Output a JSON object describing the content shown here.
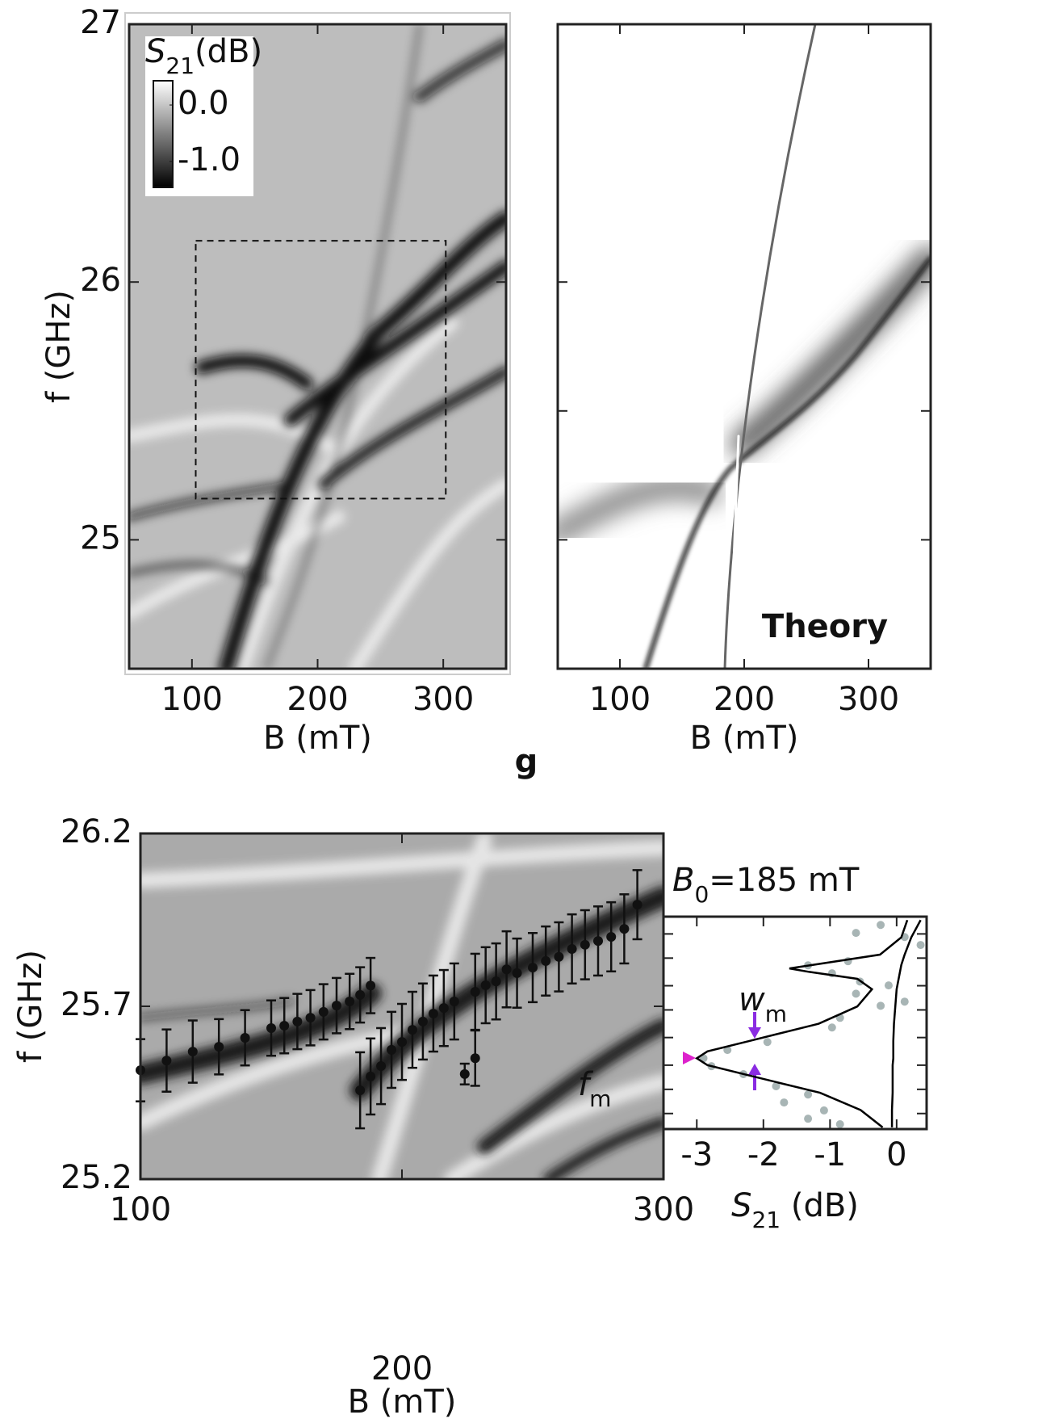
{
  "chart_data": [
    {
      "type": "heatmap",
      "xlim": [
        50,
        350
      ],
      "ylim": [
        24.5,
        27
      ],
      "xticks": [
        100,
        200,
        300
      ],
      "yticks": [
        25,
        26,
        27
      ],
      "xlabel": "B (mT)",
      "ylabel": "f (GHz)",
      "colorbar": {
        "title": {
          "symbol": "S",
          "subscript": "21",
          "unit": "(dB)"
        },
        "lim": [
          -1.46,
          0.43
        ],
        "ticks": [
          {
            "value": 0,
            "label": "0.0"
          },
          {
            "value": -1,
            "label": "-1.0"
          }
        ]
      },
      "highlight_box": {
        "xlim": [
          103,
          302
        ],
        "ylim": [
          25.16,
          26.16
        ]
      }
    },
    {
      "type": "heatmap",
      "xlim": [
        50,
        350
      ],
      "ylim": [
        24.5,
        27
      ],
      "xticks": [
        100,
        200,
        300
      ],
      "ytick_marks": [
        25,
        25.5,
        26
      ],
      "xlabel": "B (mT)",
      "annotation": "Theory"
    },
    {
      "type": "scatter",
      "xlim": [
        100,
        300
      ],
      "ylim": [
        25.2,
        26.2
      ],
      "xticks": [
        100,
        200,
        300
      ],
      "yticks": [
        25.2,
        25.7,
        26.2
      ],
      "xlabel": "B (mT)",
      "ylabel": "f (GHz)",
      "series": [
        {
          "color": "#111111",
          "x": [
            100,
            110,
            120,
            130,
            140,
            150,
            155,
            160,
            165,
            170,
            175,
            180,
            184,
            188,
            184,
            188,
            192,
            196,
            200,
            204,
            208,
            212,
            216,
            220,
            224,
            228,
            228,
            232,
            236,
            240,
            244,
            250,
            255,
            260,
            265,
            270,
            275,
            280,
            285,
            290
          ],
          "values": [
            25.515,
            25.543,
            25.569,
            25.583,
            25.609,
            25.637,
            25.644,
            25.656,
            25.667,
            25.684,
            25.702,
            25.714,
            25.733,
            25.76,
            25.457,
            25.497,
            25.527,
            25.574,
            25.597,
            25.632,
            25.656,
            25.679,
            25.695,
            25.714,
            25.504,
            25.55,
            25.742,
            25.761,
            25.772,
            25.807,
            25.796,
            25.812,
            25.831,
            25.843,
            25.866,
            25.878,
            25.889,
            25.901,
            25.924,
            25.994
          ],
          "errors": [
            0.09,
            0.09,
            0.09,
            0.08,
            0.08,
            0.08,
            0.08,
            0.08,
            0.08,
            0.08,
            0.08,
            0.08,
            0.08,
            0.08,
            0.11,
            0.11,
            0.11,
            0.11,
            0.11,
            0.11,
            0.11,
            0.11,
            0.11,
            0.11,
            0.03,
            0.08,
            0.11,
            0.11,
            0.11,
            0.11,
            0.1,
            0.1,
            0.1,
            0.1,
            0.1,
            0.1,
            0.1,
            0.1,
            0.1,
            0.1
          ]
        }
      ]
    },
    {
      "type": "line",
      "title": {
        "symbol": "B",
        "subscript": "0",
        "rest": "=185 mT"
      },
      "xlim": [
        -3.5,
        0.45
      ],
      "ylim": [
        25.345,
        25.96
      ],
      "xticks": [
        -3,
        -2,
        -1,
        0
      ],
      "ytick_marks": [
        25.39,
        25.46,
        25.53,
        25.61,
        25.69,
        25.76,
        25.84,
        25.91
      ],
      "xlabel": {
        "symbol": "S",
        "subscript": "21",
        "unit": " (dB)"
      },
      "annotations": [
        {
          "symbol": "w",
          "subscript": "m"
        },
        {
          "symbol": "f",
          "subscript": "m"
        }
      ],
      "y": [
        25.35,
        25.4,
        25.45,
        25.5,
        25.53,
        25.55,
        25.57,
        25.6,
        25.65,
        25.7,
        25.75,
        25.78,
        25.8,
        25.81,
        25.82,
        25.85,
        25.9,
        25.95
      ],
      "series": [
        {
          "color": "#000000",
          "values": [
            -0.21,
            -0.54,
            -1.15,
            -2.21,
            -2.84,
            -3.0,
            -2.84,
            -2.21,
            -1.17,
            -0.59,
            -0.37,
            -0.59,
            -1.31,
            -1.61,
            -1.27,
            -0.25,
            0.07,
            0.16
          ]
        },
        {
          "color": "#000000",
          "values": [
            -0.07,
            -0.07,
            -0.06,
            -0.06,
            -0.06,
            -0.05,
            -0.05,
            -0.05,
            -0.04,
            -0.02,
            0.0,
            0.03,
            0.05,
            0.06,
            0.07,
            0.12,
            0.22,
            0.36
          ]
        }
      ],
      "scatter_points": {
        "color": "#a8b5b5",
        "values": [
          -0.24,
          -0.61,
          0.12,
          0.36,
          -0.73,
          -1.33,
          -0.97,
          -0.55,
          -0.12,
          -0.61,
          0.12,
          -0.24,
          -0.85,
          -0.97,
          -1.94,
          -2.54,
          -2.9,
          -2.78,
          -2.3,
          -1.81,
          -1.33,
          -1.69,
          -1.09,
          -1.33,
          -0.85
        ],
        "y": [
          25.936,
          25.913,
          25.901,
          25.878,
          25.831,
          25.819,
          25.796,
          25.772,
          25.761,
          25.737,
          25.714,
          25.702,
          25.667,
          25.639,
          25.597,
          25.574,
          25.55,
          25.527,
          25.504,
          25.469,
          25.445,
          25.422,
          25.399,
          25.375,
          25.359
        ]
      }
    }
  ],
  "panel_label": "g"
}
